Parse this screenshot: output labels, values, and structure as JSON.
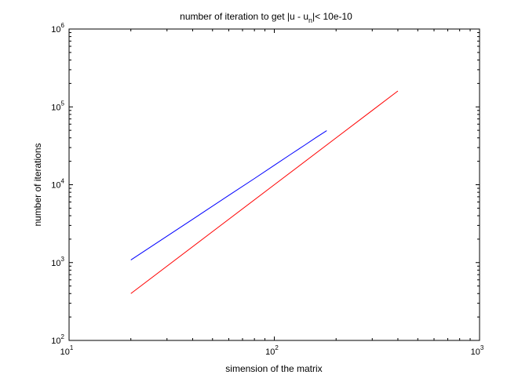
{
  "chart_data": {
    "type": "line",
    "title": {
      "main": "number of iteration to get |u - u",
      "sub": "n",
      "rest": "|< 10e-10"
    },
    "xlabel": "simension of the matrix",
    "ylabel": "number of iterations",
    "xscale": "log",
    "yscale": "log",
    "xlim": [
      10,
      1000
    ],
    "ylim": [
      100,
      1000000
    ],
    "grid": false,
    "x_ticks": [
      {
        "value": 10,
        "base": "10",
        "exp": "1"
      },
      {
        "value": 100,
        "base": "10",
        "exp": "2"
      },
      {
        "value": 1000,
        "base": "10",
        "exp": "3"
      }
    ],
    "y_ticks": [
      {
        "value": 100,
        "base": "10",
        "exp": "2"
      },
      {
        "value": 1000,
        "base": "10",
        "exp": "3"
      },
      {
        "value": 10000,
        "base": "10",
        "exp": "4"
      },
      {
        "value": 100000,
        "base": "10",
        "exp": "5"
      },
      {
        "value": 1000000,
        "base": "10",
        "exp": "6"
      }
    ],
    "series": [
      {
        "color": "#0000ff",
        "x": [
          20,
          40,
          60,
          80,
          100,
          120,
          140,
          160,
          180
        ],
        "y": [
          1080,
          3600,
          7300,
          12000,
          17800,
          24500,
          32000,
          40500,
          49500
        ]
      },
      {
        "color": "#ff0000",
        "x": [
          20,
          50,
          100,
          200,
          300,
          400
        ],
        "y": [
          400,
          2500,
          10000,
          40000,
          90000,
          160000
        ]
      }
    ]
  }
}
